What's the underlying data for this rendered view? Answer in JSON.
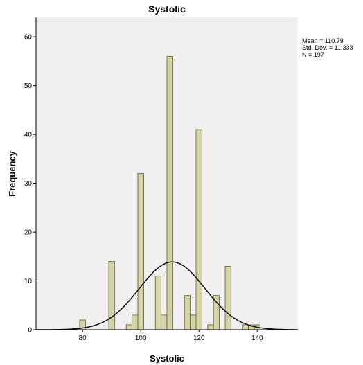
{
  "chart_data": {
    "type": "bar",
    "title": "Systolic",
    "xlabel": "Systolic",
    "ylabel": "Frequency",
    "xlim": [
      64,
      154
    ],
    "ylim": [
      0,
      64
    ],
    "bin_width": 2,
    "xticks": [
      80,
      100,
      120,
      140
    ],
    "yticks": [
      0,
      10,
      20,
      30,
      40,
      50,
      60
    ],
    "bins": [
      {
        "x": 80,
        "count": 2
      },
      {
        "x": 90,
        "count": 14
      },
      {
        "x": 96,
        "count": 1
      },
      {
        "x": 98,
        "count": 3
      },
      {
        "x": 100,
        "count": 32
      },
      {
        "x": 106,
        "count": 11
      },
      {
        "x": 108,
        "count": 3
      },
      {
        "x": 110,
        "count": 56
      },
      {
        "x": 116,
        "count": 7
      },
      {
        "x": 118,
        "count": 3
      },
      {
        "x": 120,
        "count": 41
      },
      {
        "x": 124,
        "count": 1
      },
      {
        "x": 126,
        "count": 7
      },
      {
        "x": 130,
        "count": 13
      },
      {
        "x": 136,
        "count": 1
      },
      {
        "x": 138,
        "count": 1
      },
      {
        "x": 140,
        "count": 1
      }
    ],
    "normal_curve": {
      "mean": 110.79,
      "sd": 11.333,
      "n": 197
    },
    "stats": [
      "Mean = 110.79",
      "Std. Dev. = 11.333",
      "N = 197"
    ],
    "grid": false,
    "colors": {
      "bar_fill": "#d6d3a5",
      "bar_stroke": "#5b5b3e",
      "plot_background": "#f0f0f0",
      "curve": "#000000"
    }
  }
}
